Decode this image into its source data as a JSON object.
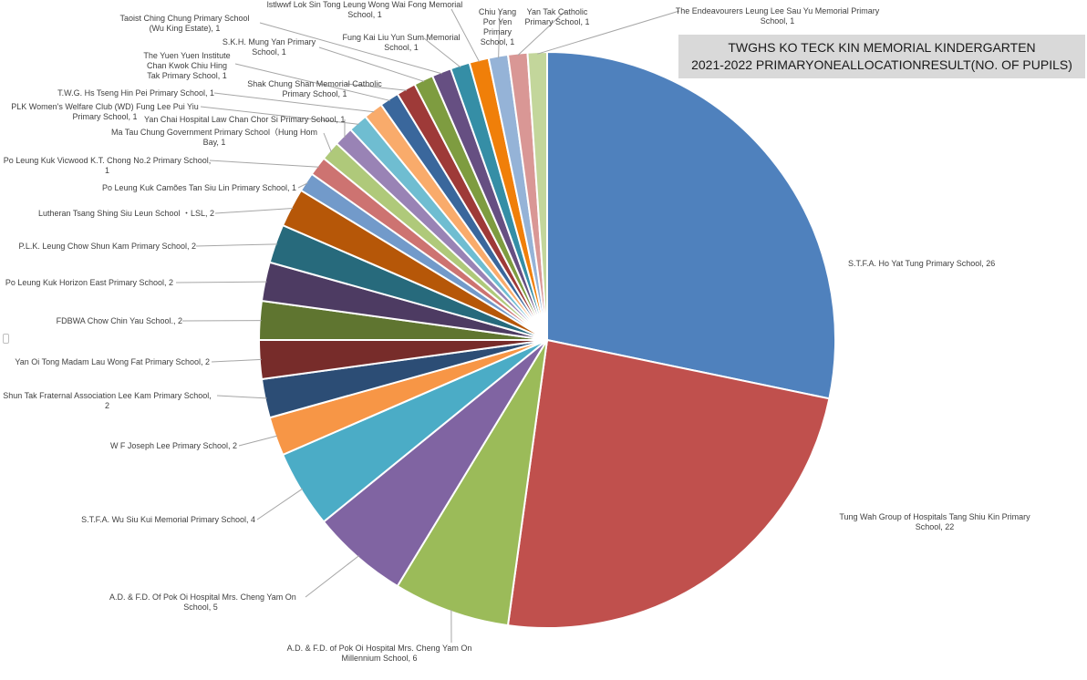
{
  "chart_data": {
    "type": "pie",
    "title": "TWGHS KO TECK KIN MEMORIAL KINDERGARTEN",
    "subtitle": "2021-2022 PRIMARYONEALLOCATIONRESULT(NO. OF PUPILS)",
    "slices": [
      {
        "label": "S.T.F.A. Ho Yat Tung Primary School, 26",
        "value": 26,
        "color": "#4f81bd"
      },
      {
        "label": "Tung Wah Group of Hospitals Tang Shiu Kin Primary School, 22",
        "value": 22,
        "color": "#c0504d"
      },
      {
        "label": "A.D. & F.D. of Pok Oi Hospital Mrs. Cheng Yam On Millennium School, 6",
        "value": 6,
        "color": "#9bbb59"
      },
      {
        "label": "A.D. & F.D. Of Pok Oi Hospital Mrs. Cheng Yam On School, 5",
        "value": 5,
        "color": "#8064a2"
      },
      {
        "label": "S.T.F.A. Wu Siu Kui Memorial Primary School, 4",
        "value": 4,
        "color": "#4bacc6"
      },
      {
        "label": "W F Joseph Lee Primary School, 2",
        "value": 2,
        "color": "#f79646"
      },
      {
        "label": "Shun Tak Fraternal Association Lee Kam Primary School, 2",
        "value": 2,
        "color": "#2c4d75"
      },
      {
        "label": "Yan Oi Tong Madam Lau Wong Fat Primary School, 2",
        "value": 2,
        "color": "#772c2a"
      },
      {
        "label": "FDBWA Chow Chin Yau School., 2",
        "value": 2,
        "color": "#5f7530"
      },
      {
        "label": "Po Leung Kuk Horizon East Primary School, 2",
        "value": 2,
        "color": "#4d3b62"
      },
      {
        "label": "P.L.K. Leung Chow Shun Kam Primary School, 2",
        "value": 2,
        "color": "#276a7c"
      },
      {
        "label": "Lutheran Tsang Shing Siu Leun School ・LSL, 2",
        "value": 2,
        "color": "#b65708"
      },
      {
        "label": "Po Leung Kuk Camões Tan Siu Lin Primary School, 1",
        "value": 1,
        "color": "#729aca"
      },
      {
        "label": "Po Leung Kuk Vicwood K.T. Chong No.2 Primary School, 1",
        "value": 1,
        "color": "#cd7371"
      },
      {
        "label": "Ma Tau Chung Government Primary School（Hung Hom Bay, 1",
        "value": 1,
        "color": "#afc97a"
      },
      {
        "label": "Yan Chai Hospital Law Chan Chor Si Primary School, 1",
        "value": 1,
        "color": "#9983b5"
      },
      {
        "label": "PLK Women's Welfare Club (WD) Fung Lee Pui Yiu Primary School, 1",
        "value": 1,
        "color": "#6fbdd1"
      },
      {
        "label": "T.W.G. Hs Tseng Hin Pei Primary School, 1",
        "value": 1,
        "color": "#f9ab6b"
      },
      {
        "label": "The Yuen Yuen Institute Chan Kwok Chiu Hing Tak Primary School, 1",
        "value": 1,
        "color": "#3a679c"
      },
      {
        "label": "Shak Chung Shan Memorial Catholic Primary School, 1",
        "value": 1,
        "color": "#9e3a38"
      },
      {
        "label": "S.K.H. Mung Yan Primary School, 1",
        "value": 1,
        "color": "#7e9c40"
      },
      {
        "label": "Taoist Ching Chung Primary School (Wu King Estate), 1",
        "value": 1,
        "color": "#664f82"
      },
      {
        "label": "Fung Kai Liu Yun Sum Memorial School, 1",
        "value": 1,
        "color": "#358ea6"
      },
      {
        "label": "lstlwwf Lok Sin Tong Leung Wong Wai Fong Memorial School, 1",
        "value": 1,
        "color": "#f07f09"
      },
      {
        "label": "Chiu Yang Por Yen Primary School, 1",
        "value": 1,
        "color": "#95b3d7"
      },
      {
        "label": "Yan Tak Catholic Primary School, 1",
        "value": 1,
        "color": "#d99795"
      },
      {
        "label": "The Endeavourers Leung Lee Sau Yu Memorial Primary School, 1",
        "value": 1,
        "color": "#c3d69b"
      }
    ],
    "legend": "none"
  },
  "labels": [
    {
      "l1": "S.T.F.A. Ho Yat Tung Primary School, 26",
      "l2": ""
    },
    {
      "l1": "Tung Wah Group of Hospitals Tang Shiu Kin Primary",
      "l2": "School, 22"
    },
    {
      "l1": "A.D. & F.D. of Pok Oi Hospital Mrs. Cheng Yam On",
      "l2": "Millennium School, 6"
    },
    {
      "l1": "A.D. & F.D. Of Pok Oi Hospital Mrs. Cheng Yam On",
      "l2": "School, 5"
    },
    {
      "l1": "S.T.F.A. Wu Siu Kui Memorial Primary School, 4",
      "l2": ""
    },
    {
      "l1": "W F Joseph Lee Primary School, 2",
      "l2": ""
    },
    {
      "l1": "Shun Tak Fraternal Association Lee Kam Primary School,",
      "l2": "2"
    },
    {
      "l1": "Yan Oi Tong Madam Lau Wong Fat Primary School, 2",
      "l2": ""
    },
    {
      "l1": "FDBWA Chow Chin Yau School., 2",
      "l2": ""
    },
    {
      "l1": "Po Leung Kuk Horizon East Primary School, 2",
      "l2": ""
    },
    {
      "l1": "P.L.K. Leung Chow Shun Kam Primary School, 2",
      "l2": ""
    },
    {
      "l1": "Lutheran Tsang Shing Siu Leun School ・LSL, 2",
      "l2": ""
    },
    {
      "l1": "Po Leung Kuk Camões Tan Siu Lin Primary School, 1",
      "l2": ""
    },
    {
      "l1": "Po Leung Kuk Vicwood K.T. Chong No.2 Primary School,",
      "l2": "1"
    },
    {
      "l1": "Ma Tau Chung Government Primary School（Hung Hom",
      "l2": "Bay, 1"
    },
    {
      "l1": "Yan Chai Hospital Law Chan Chor Si Primary School, 1",
      "l2": ""
    },
    {
      "l1": "PLK Women's Welfare Club (WD) Fung Lee Pui Yiu",
      "l2": "Primary School, 1"
    },
    {
      "l1": "T.W.G. Hs Tseng Hin Pei Primary School, 1",
      "l2": ""
    },
    {
      "l1": "The Yuen Yuen Institute",
      "l2": "Chan Kwok Chiu Hing",
      "l3": "Tak Primary School, 1"
    },
    {
      "l1": "Shak Chung Shan Memorial Catholic",
      "l2": "Primary School, 1"
    },
    {
      "l1": "S.K.H. Mung Yan Primary",
      "l2": "School, 1"
    },
    {
      "l1": "Taoist Ching Chung Primary School",
      "l2": "(Wu King Estate), 1"
    },
    {
      "l1": "Fung Kai Liu Yun Sum Memorial",
      "l2": "School, 1"
    },
    {
      "l1": "lstlwwf Lok Sin Tong Leung Wong Wai Fong Memorial",
      "l2": "School, 1"
    },
    {
      "l1": "Chiu Yang",
      "l2": "Por Yen",
      "l3": "Primary",
      "l4": "School, 1"
    },
    {
      "l1": "Yan Tak Catholic",
      "l2": "Primary School, 1"
    },
    {
      "l1": "The Endeavourers Leung Lee Sau Yu Memorial Primary",
      "l2": "School, 1"
    }
  ]
}
